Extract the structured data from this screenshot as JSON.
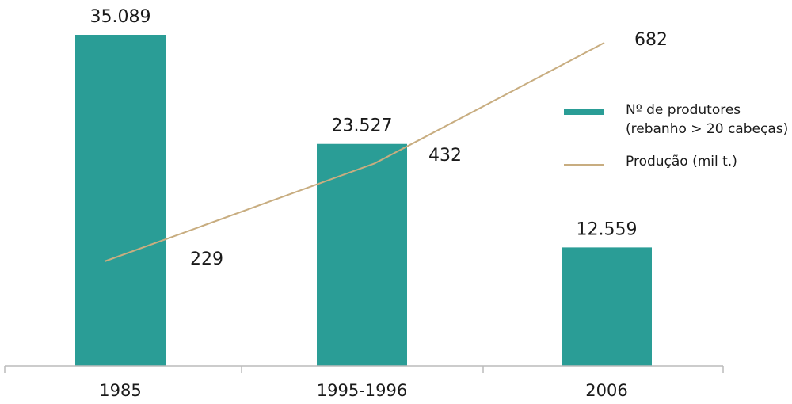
{
  "chart_data": {
    "type": "bar",
    "title": "",
    "xlabel": "",
    "ylabel": "",
    "categories": [
      "1985",
      "1995-1996",
      "2006"
    ],
    "series": [
      {
        "name": "Nº de produtores (rebanho > 20 cabeças)",
        "type": "bar",
        "values": [
          35089,
          23527,
          12559
        ],
        "value_labels": [
          "35.089",
          "23.527",
          "12.559"
        ],
        "color": "#2a9d96"
      },
      {
        "name": "Produção (mil t.)",
        "type": "line",
        "values": [
          229,
          432,
          682
        ],
        "value_labels": [
          "229",
          "432",
          "682"
        ],
        "color": "#c8ad80"
      }
    ],
    "ylim_bars": [
      0,
      35089
    ],
    "ylim_line": [
      0,
      682
    ],
    "grid": false,
    "legend": {
      "position": "right",
      "bar_label_lines": [
        "Nº de produtores",
        "(rebanho > 20 cabeças)"
      ],
      "line_label": "Produção (mil t.)"
    },
    "axis_color": "#bbbbbb"
  }
}
